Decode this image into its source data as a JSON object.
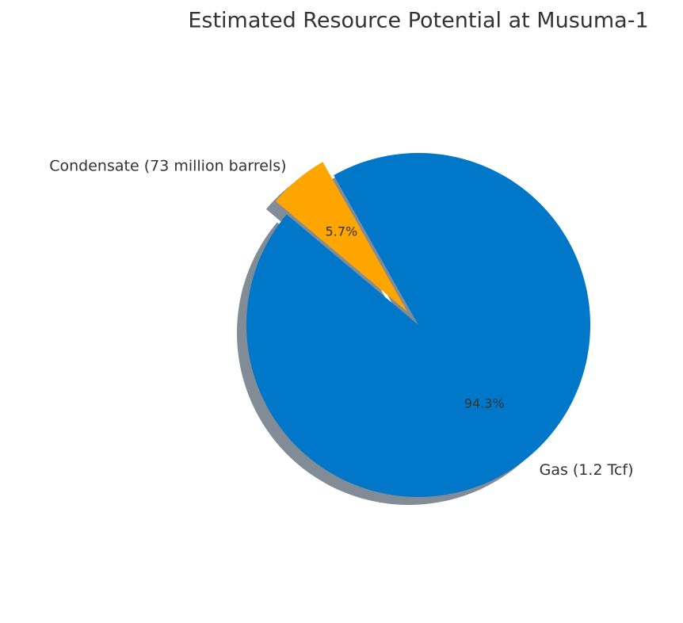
{
  "chart_data": {
    "type": "pie",
    "title": "Estimated Resource Potential at Musuma-1",
    "categories": [
      "Gas (1.2 Tcf)",
      "Condensate (73 million barrels)"
    ],
    "values": [
      94.3,
      5.7
    ],
    "value_labels": [
      "94.3%",
      "5.7%"
    ],
    "colors": [
      "#0077c8",
      "#ffa500"
    ],
    "shadow": true
  }
}
